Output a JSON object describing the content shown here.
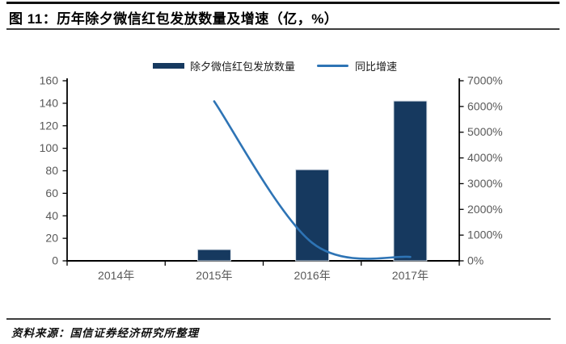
{
  "figure": {
    "title": "图 11：历年除夕微信红包发放数量及增速（亿，%）",
    "source": "资料来源：国信证券经济研究所整理"
  },
  "colors": {
    "bar": "#16395F",
    "bar_edge": "#D8DFE8",
    "line": "#2E74B5",
    "axis": "#000000",
    "tick_label": "#595959",
    "text": "#1A1A1A"
  },
  "chart_data": {
    "type": "bar+line",
    "title": "历年除夕微信红包发放数量及增速（亿，%）",
    "categories": [
      "2014年",
      "2015年",
      "2016年",
      "2017年"
    ],
    "series": [
      {
        "name": "除夕微信红包发放数量",
        "type": "bar",
        "axis": "left",
        "values": [
          null,
          10,
          81,
          142
        ],
        "color": "#16395F"
      },
      {
        "name": "同比增速",
        "type": "line",
        "axis": "right",
        "values": [
          null,
          6200,
          700,
          150
        ],
        "color": "#2E74B5",
        "smooth": true
      }
    ],
    "left_axis": {
      "min": 0,
      "max": 160,
      "step": 20,
      "suffix": "",
      "tick_labels": [
        "0",
        "20",
        "40",
        "60",
        "80",
        "100",
        "120",
        "140",
        "160"
      ]
    },
    "right_axis": {
      "min": 0,
      "max": 7000,
      "step": 1000,
      "suffix": "%",
      "tick_labels": [
        "0%",
        "1000%",
        "2000%",
        "3000%",
        "4000%",
        "5000%",
        "6000%",
        "7000%"
      ]
    },
    "legend_position": "top-center",
    "gridlines": false,
    "plot_background": "#FFFFFF"
  }
}
